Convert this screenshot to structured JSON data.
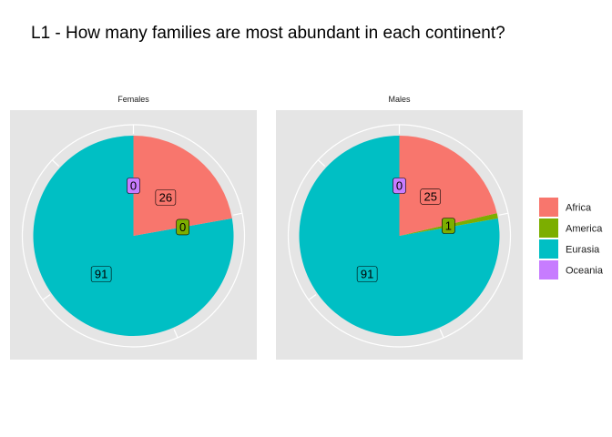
{
  "chart_data": {
    "type": "pie",
    "title": "L1 - How many families are most abundant in each continent?",
    "categories": [
      "Africa",
      "America",
      "Eurasia",
      "Oceania"
    ],
    "colors": {
      "Africa": "#F8766D",
      "America": "#7CAE00",
      "Eurasia": "#00BFC4",
      "Oceania": "#C77CFF"
    },
    "panels": [
      {
        "name": "Females",
        "values": {
          "Africa": 26,
          "America": 0,
          "Eurasia": 91,
          "Oceania": 0
        },
        "labels": [
          "26",
          "0",
          "91",
          "0"
        ]
      },
      {
        "name": "Males",
        "values": {
          "Africa": 25,
          "America": 1,
          "Eurasia": 91,
          "Oceania": 0
        },
        "labels": [
          "25",
          "1",
          "91",
          "0"
        ]
      }
    ],
    "legend": {
      "position": "right",
      "entries": [
        "Africa",
        "America",
        "Eurasia",
        "Oceania"
      ]
    },
    "panel_background": "#E5E5E5",
    "grid": true
  }
}
